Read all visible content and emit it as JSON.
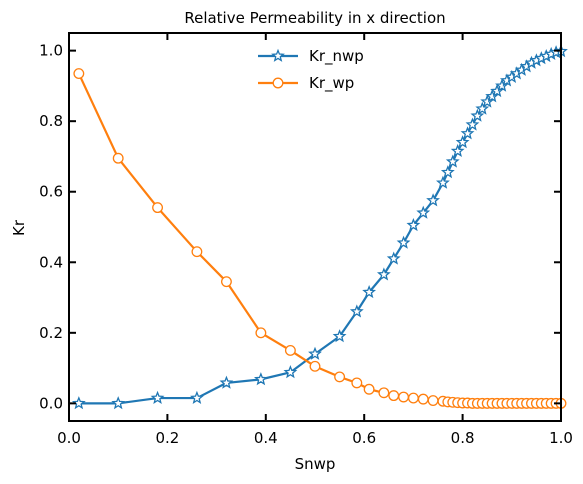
{
  "chart_data": {
    "type": "line",
    "title": "Relative Permeability in x direction",
    "xlabel": "Snwp",
    "ylabel": "Kr",
    "xlim": [
      0.0,
      1.0
    ],
    "ylim": [
      -0.05,
      1.05
    ],
    "xticks": [
      0.0,
      0.2,
      0.4,
      0.6,
      0.8,
      1.0
    ],
    "xtick_labels": [
      "0.0",
      "0.2",
      "0.4",
      "0.6",
      "0.8",
      "1.0"
    ],
    "yticks": [
      0.0,
      0.2,
      0.4,
      0.6,
      0.8,
      1.0
    ],
    "ytick_labels": [
      "0.0",
      "0.2",
      "0.4",
      "0.6",
      "0.8",
      "1.0"
    ],
    "grid": false,
    "legend_position": "top-center",
    "series": [
      {
        "name": "Kr_nwp",
        "color": "#1f77b4",
        "marker": "star",
        "x": [
          0.02,
          0.1,
          0.18,
          0.26,
          0.32,
          0.39,
          0.45,
          0.5,
          0.55,
          0.585,
          0.61,
          0.64,
          0.66,
          0.68,
          0.7,
          0.72,
          0.74,
          0.76,
          0.77,
          0.78,
          0.79,
          0.8,
          0.81,
          0.82,
          0.83,
          0.84,
          0.85,
          0.86,
          0.87,
          0.88,
          0.89,
          0.9,
          0.91,
          0.92,
          0.93,
          0.94,
          0.95,
          0.96,
          0.97,
          0.98,
          0.99,
          1.0
        ],
        "y": [
          0.0,
          0.0,
          0.015,
          0.015,
          0.058,
          0.068,
          0.088,
          0.14,
          0.19,
          0.26,
          0.315,
          0.365,
          0.41,
          0.455,
          0.505,
          0.54,
          0.575,
          0.625,
          0.655,
          0.685,
          0.715,
          0.74,
          0.765,
          0.79,
          0.815,
          0.835,
          0.855,
          0.87,
          0.885,
          0.9,
          0.915,
          0.925,
          0.935,
          0.945,
          0.955,
          0.965,
          0.972,
          0.978,
          0.984,
          0.99,
          0.995,
          0.998
        ]
      },
      {
        "name": "Kr_wp",
        "color": "#ff7f0e",
        "marker": "circle",
        "x": [
          0.02,
          0.1,
          0.18,
          0.26,
          0.32,
          0.39,
          0.45,
          0.5,
          0.55,
          0.585,
          0.61,
          0.64,
          0.66,
          0.68,
          0.7,
          0.72,
          0.74,
          0.76,
          0.77,
          0.78,
          0.79,
          0.8,
          0.81,
          0.82,
          0.83,
          0.84,
          0.85,
          0.86,
          0.87,
          0.88,
          0.89,
          0.9,
          0.91,
          0.92,
          0.93,
          0.94,
          0.95,
          0.96,
          0.97,
          0.98,
          0.99,
          1.0
        ],
        "y": [
          0.935,
          0.695,
          0.555,
          0.43,
          0.345,
          0.2,
          0.15,
          0.105,
          0.075,
          0.058,
          0.04,
          0.03,
          0.022,
          0.018,
          0.015,
          0.012,
          0.008,
          0.006,
          0.004,
          0.003,
          0.002,
          0.001,
          0.001,
          0.0,
          0.0,
          0.0,
          0.0,
          0.0,
          0.0,
          0.0,
          0.0,
          0.0,
          0.0,
          0.0,
          0.0,
          0.0,
          0.0,
          0.0,
          0.0,
          0.0,
          0.0,
          0.0
        ]
      }
    ]
  }
}
